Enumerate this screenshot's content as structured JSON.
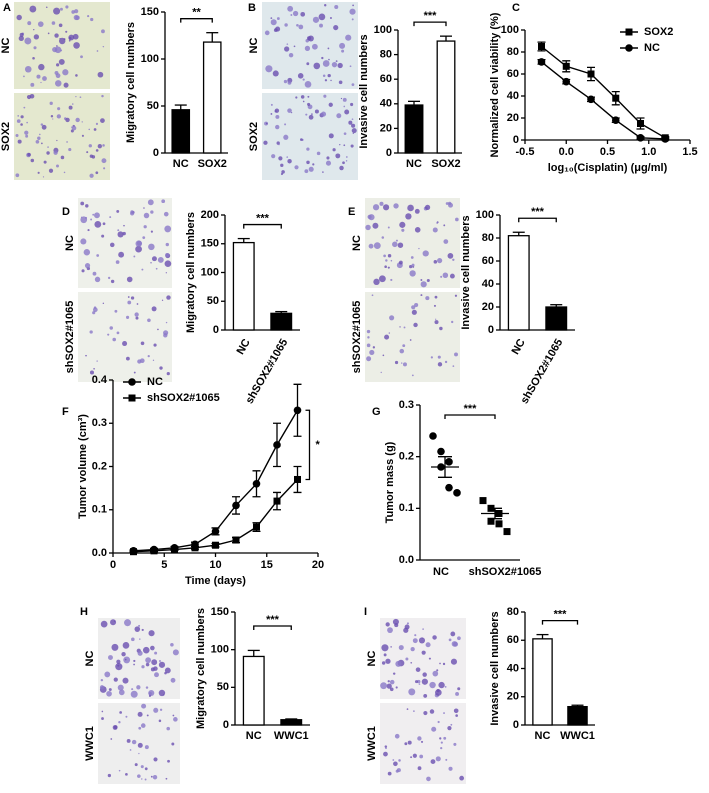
{
  "chart_data": [
    {
      "type": "bar",
      "panel": "A",
      "image_labels": [
        "NC",
        "SOX2"
      ],
      "y_label": "Migratory cell numbers",
      "categories": [
        "NC",
        "SOX2"
      ],
      "values": [
        46,
        118
      ],
      "errors": [
        5,
        10
      ],
      "colors": [
        "#000000",
        "#ffffff"
      ],
      "ylim": [
        0,
        150
      ],
      "yticks": [
        0,
        50,
        100,
        150
      ],
      "significance": "**"
    },
    {
      "type": "bar",
      "panel": "B",
      "image_labels": [
        "NC",
        "SOX2"
      ],
      "y_label": "Invasive cell numbers",
      "categories": [
        "NC",
        "SOX2"
      ],
      "values": [
        39,
        91
      ],
      "errors": [
        3,
        4
      ],
      "colors": [
        "#000000",
        "#ffffff"
      ],
      "ylim": [
        0,
        100
      ],
      "yticks": [
        0,
        20,
        40,
        60,
        80,
        100
      ],
      "significance": "***"
    },
    {
      "type": "line",
      "panel": "C",
      "x_label": "log₁₀(Cisplatin) (μg/ml)",
      "y_label": "Normalized cell viability (%)",
      "x": [
        -0.3,
        0,
        0.3,
        0.6,
        0.9,
        1.2
      ],
      "series": [
        {
          "name": "SOX2",
          "marker": "square",
          "color": "#000000",
          "values": [
            85,
            67,
            60,
            38,
            15,
            2
          ],
          "errors": [
            4,
            5,
            6,
            6,
            5,
            1
          ]
        },
        {
          "name": "NC",
          "marker": "circle",
          "color": "#000000",
          "values": [
            71,
            53,
            37,
            18,
            2,
            1
          ],
          "errors": [
            2,
            2,
            2,
            2,
            1,
            1
          ]
        }
      ],
      "xlim": [
        -0.5,
        1.5
      ],
      "xticks": [
        -0.5,
        {
          "value": 0,
          "label": "0.0"
        },
        0.5,
        {
          "value": 1,
          "label": "1.0"
        },
        1.5
      ],
      "ylim": [
        0,
        100
      ],
      "yticks": [
        0,
        20,
        40,
        60,
        80,
        100
      ],
      "legend": "upper right"
    },
    {
      "type": "bar",
      "panel": "D",
      "image_labels": [
        "NC",
        "shSOX2#1065"
      ],
      "y_label": "Migratory cell numbers",
      "categories": [
        "NC",
        "shSOX2#1065"
      ],
      "values": [
        152,
        29
      ],
      "errors": [
        7,
        3
      ],
      "colors": [
        "#ffffff",
        "#000000"
      ],
      "ylim": [
        0,
        200
      ],
      "yticks": [
        0,
        50,
        100,
        150,
        200
      ],
      "significance": "***",
      "rotate_labels": true
    },
    {
      "type": "bar",
      "panel": "E",
      "image_labels": [
        "NC",
        "shSOX2#1065"
      ],
      "y_label": "Invasive cell numbers",
      "categories": [
        "NC",
        "shSOX2#1065"
      ],
      "values": [
        82,
        20
      ],
      "errors": [
        3,
        2
      ],
      "colors": [
        "#ffffff",
        "#000000"
      ],
      "ylim": [
        0,
        100
      ],
      "yticks": [
        0,
        20,
        40,
        60,
        80,
        100
      ],
      "significance": "***",
      "rotate_labels": true
    },
    {
      "type": "line",
      "panel": "F",
      "x_label": "Time (days)",
      "y_label": "Tumor volume (cm³)",
      "x": [
        2,
        4,
        6,
        8,
        10,
        12,
        14,
        16,
        18
      ],
      "series": [
        {
          "name": "NC",
          "marker": "circle",
          "color": "#000000",
          "values": [
            0.005,
            0.008,
            0.012,
            0.02,
            0.05,
            0.11,
            0.16,
            0.25,
            0.33
          ],
          "errors": [
            0.002,
            0.002,
            0.003,
            0.005,
            0.008,
            0.02,
            0.03,
            0.05,
            0.06
          ]
        },
        {
          "name": "shSOX2#1065",
          "marker": "square",
          "color": "#000000",
          "values": [
            0.003,
            0.005,
            0.008,
            0.012,
            0.018,
            0.03,
            0.06,
            0.12,
            0.17
          ],
          "errors": [
            0.001,
            0.002,
            0.002,
            0.003,
            0.004,
            0.006,
            0.01,
            0.02,
            0.03
          ]
        }
      ],
      "xlim": [
        0,
        20
      ],
      "xticks": [
        0,
        5,
        10,
        15,
        20
      ],
      "ylim": [
        0,
        0.4
      ],
      "yticks": [
        {
          "value": 0,
          "label": "0.0"
        },
        0.1,
        0.2,
        0.3,
        0.4
      ],
      "legend": "upper left",
      "significance": "*"
    },
    {
      "type": "dotplot",
      "panel": "G",
      "y_label": "Tumor mass (g)",
      "categories": [
        "NC",
        "shSOX2#1065"
      ],
      "values": [
        [
          0.24,
          0.21,
          0.19,
          0.18,
          0.14,
          0.13
        ],
        [
          0.115,
          0.1,
          0.09,
          0.075,
          0.07,
          0.055
        ]
      ],
      "means": [
        0.18,
        0.09
      ],
      "sems": [
        0.02,
        0.01
      ],
      "ylim": [
        0,
        0.3
      ],
      "yticks": [
        {
          "value": 0,
          "label": "0.0"
        },
        0.1,
        0.2,
        0.3
      ],
      "significance": "***"
    },
    {
      "type": "bar",
      "panel": "H",
      "image_labels": [
        "NC",
        "WWC1"
      ],
      "y_label": "Migratory cell numbers",
      "categories": [
        "NC",
        "WWC1"
      ],
      "values": [
        91,
        7
      ],
      "errors": [
        8,
        1
      ],
      "colors": [
        "#ffffff",
        "#000000"
      ],
      "ylim": [
        0,
        150
      ],
      "yticks": [
        0,
        50,
        100,
        150
      ],
      "significance": "***"
    },
    {
      "type": "bar",
      "panel": "I",
      "image_labels": [
        "NC",
        "WWC1"
      ],
      "y_label": "Invasive cell numbers",
      "categories": [
        "NC",
        "WWC1"
      ],
      "values": [
        61,
        13
      ],
      "errors": [
        3,
        1
      ],
      "colors": [
        "#ffffff",
        "#000000"
      ],
      "ylim": [
        0,
        80
      ],
      "yticks": [
        0,
        20,
        40,
        60,
        80
      ],
      "significance": "***"
    }
  ]
}
